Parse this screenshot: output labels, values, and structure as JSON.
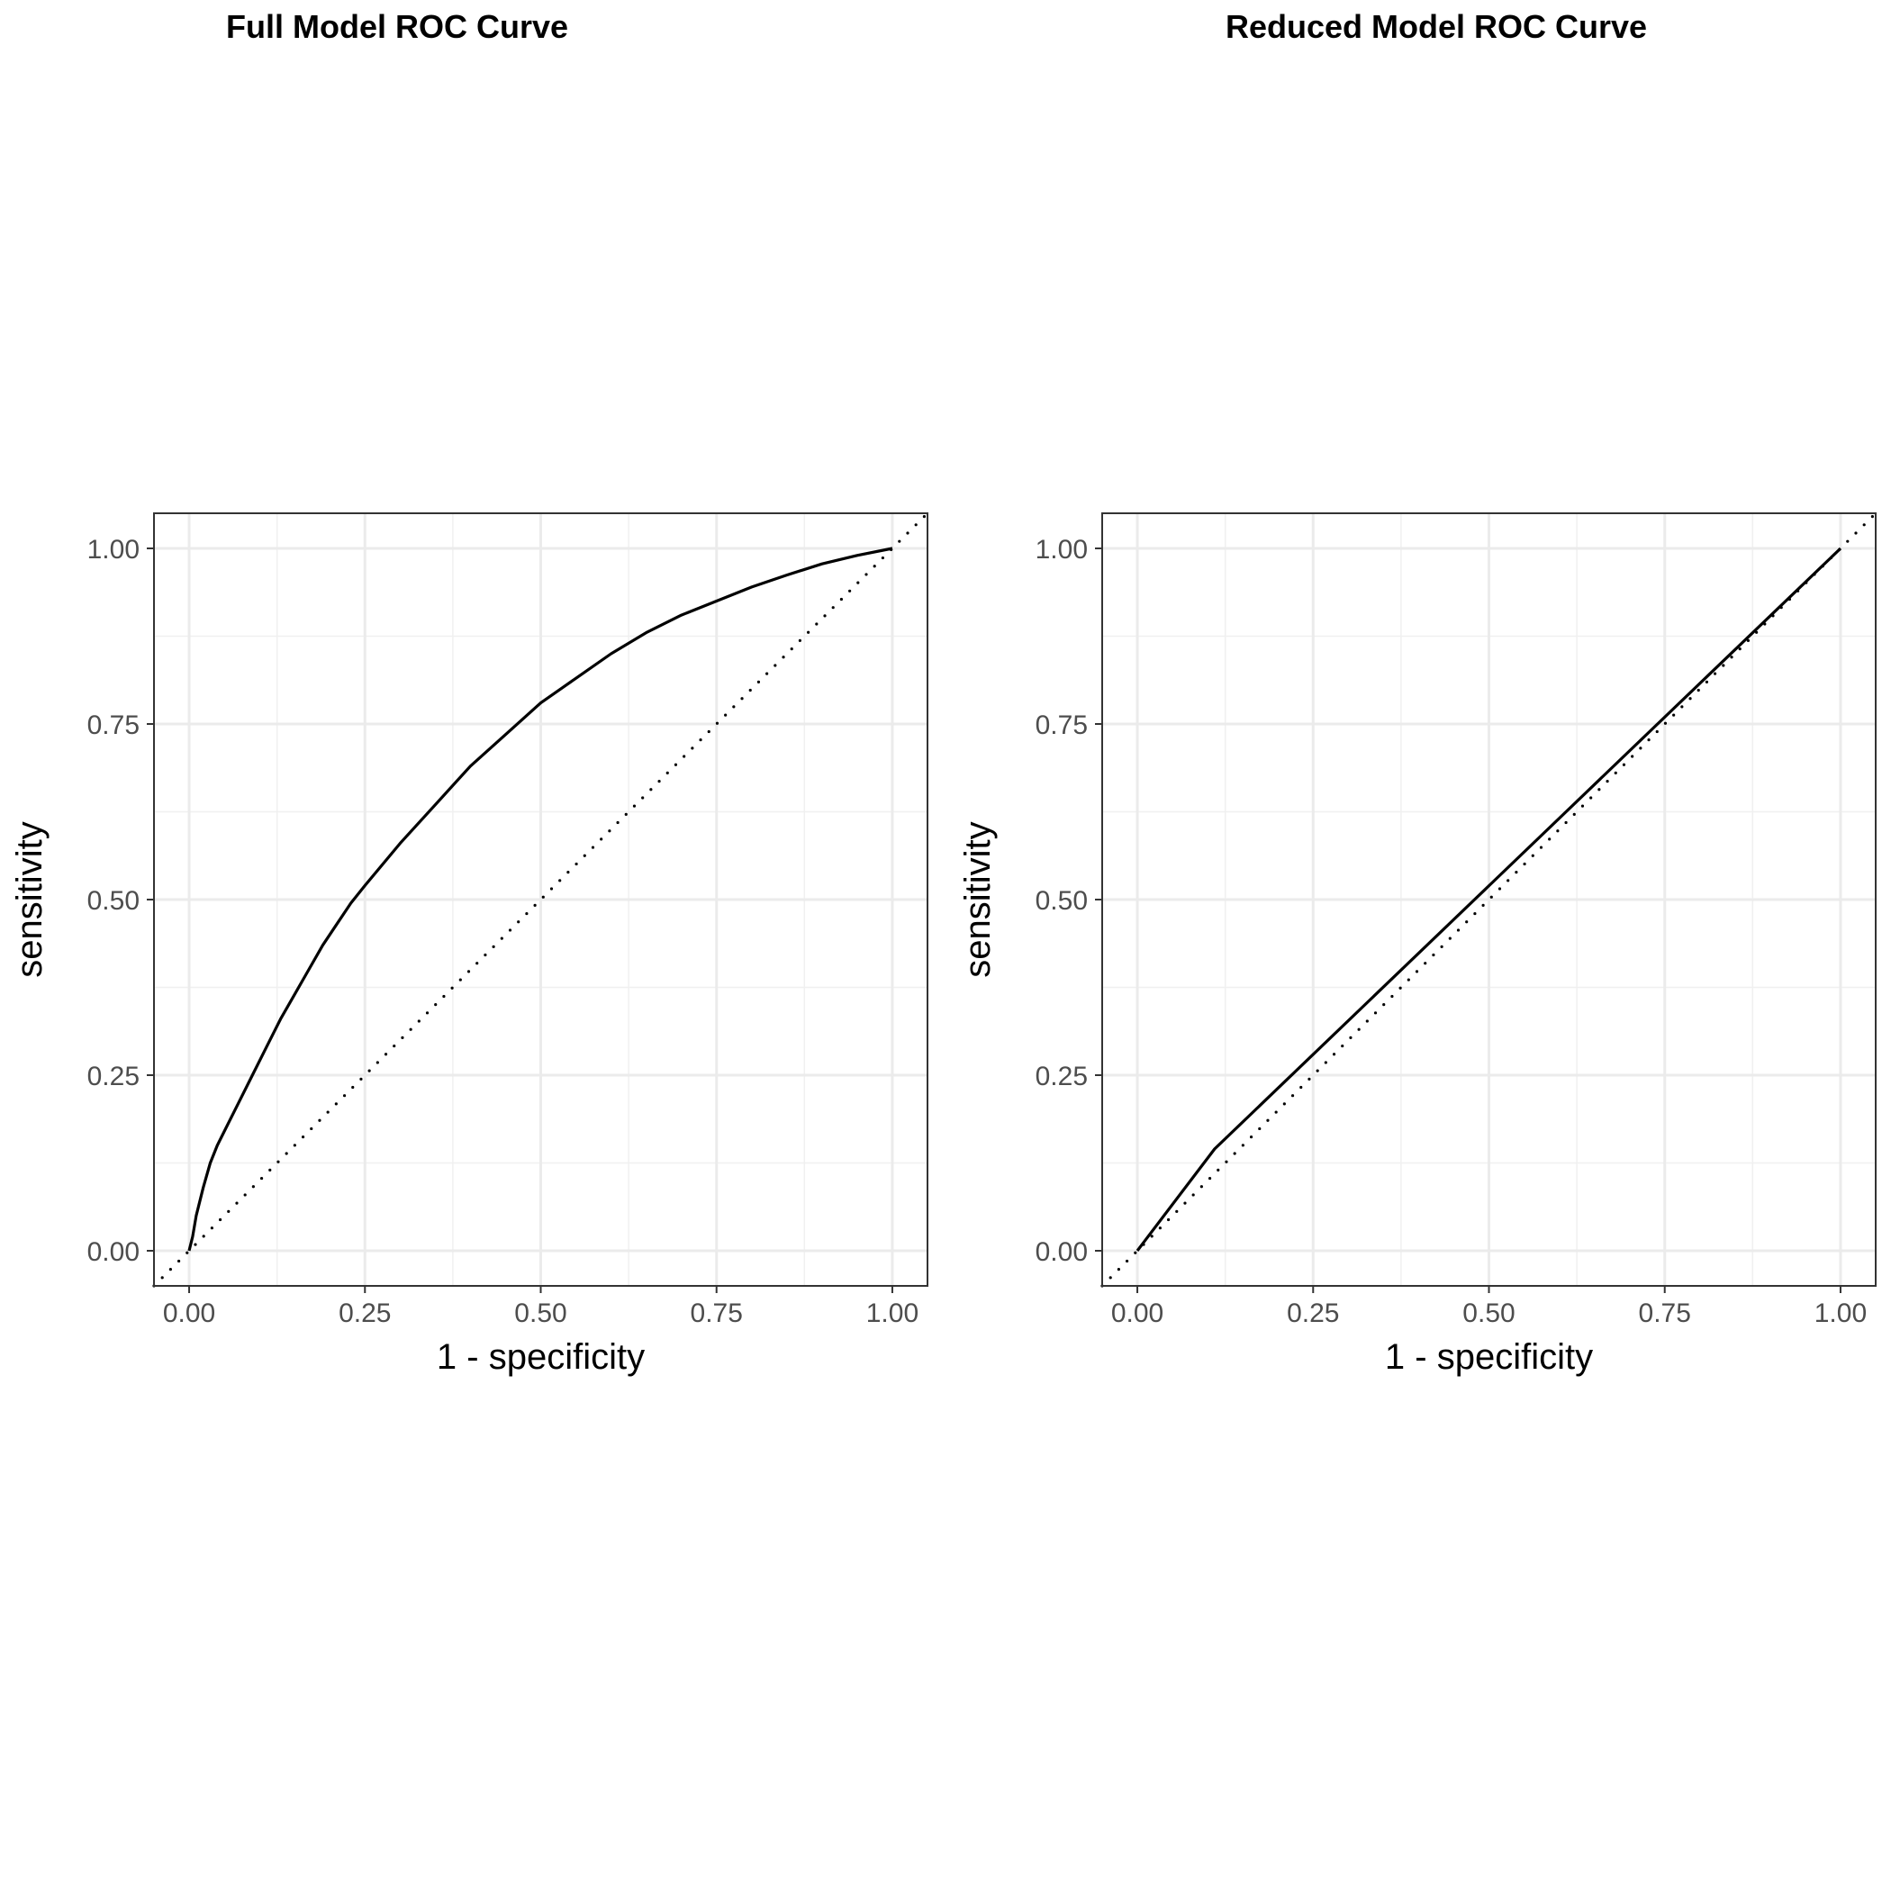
{
  "chart_data": [
    {
      "type": "line",
      "title": "Full Model ROC Curve",
      "xlabel": "1 - specificity",
      "ylabel": "sensitivity",
      "xlim": [
        -0.05,
        1.05
      ],
      "ylim": [
        -0.05,
        1.05
      ],
      "xticks": [
        "0.00",
        "0.25",
        "0.50",
        "0.75",
        "1.00"
      ],
      "yticks": [
        "0.00",
        "0.25",
        "0.50",
        "0.75",
        "1.00"
      ],
      "grid": true,
      "reference_line": "diagonal dotted y = x",
      "series": [
        {
          "x": [
            0.0,
            0.005,
            0.01,
            0.02,
            0.03,
            0.04,
            0.05,
            0.07,
            0.09,
            0.11,
            0.13,
            0.15,
            0.17,
            0.19,
            0.21,
            0.23,
            0.25,
            0.3,
            0.35,
            0.4,
            0.45,
            0.5,
            0.55,
            0.6,
            0.65,
            0.7,
            0.75,
            0.8,
            0.85,
            0.9,
            0.95,
            1.0
          ],
          "y": [
            0.0,
            0.02,
            0.05,
            0.09,
            0.125,
            0.15,
            0.17,
            0.21,
            0.25,
            0.29,
            0.33,
            0.365,
            0.4,
            0.435,
            0.465,
            0.495,
            0.52,
            0.58,
            0.635,
            0.69,
            0.735,
            0.78,
            0.815,
            0.85,
            0.88,
            0.905,
            0.925,
            0.945,
            0.962,
            0.978,
            0.99,
            1.0
          ]
        }
      ]
    },
    {
      "type": "line",
      "title": "Reduced Model ROC Curve",
      "xlabel": "1 - specificity",
      "ylabel": "sensitivity",
      "xlim": [
        -0.05,
        1.05
      ],
      "ylim": [
        -0.05,
        1.05
      ],
      "xticks": [
        "0.00",
        "0.25",
        "0.50",
        "0.75",
        "1.00"
      ],
      "yticks": [
        "0.00",
        "0.25",
        "0.50",
        "0.75",
        "1.00"
      ],
      "grid": true,
      "reference_line": "diagonal dotted y = x",
      "series": [
        {
          "x": [
            0.0,
            0.11,
            1.0
          ],
          "y": [
            0.0,
            0.145,
            1.0
          ]
        }
      ]
    }
  ]
}
